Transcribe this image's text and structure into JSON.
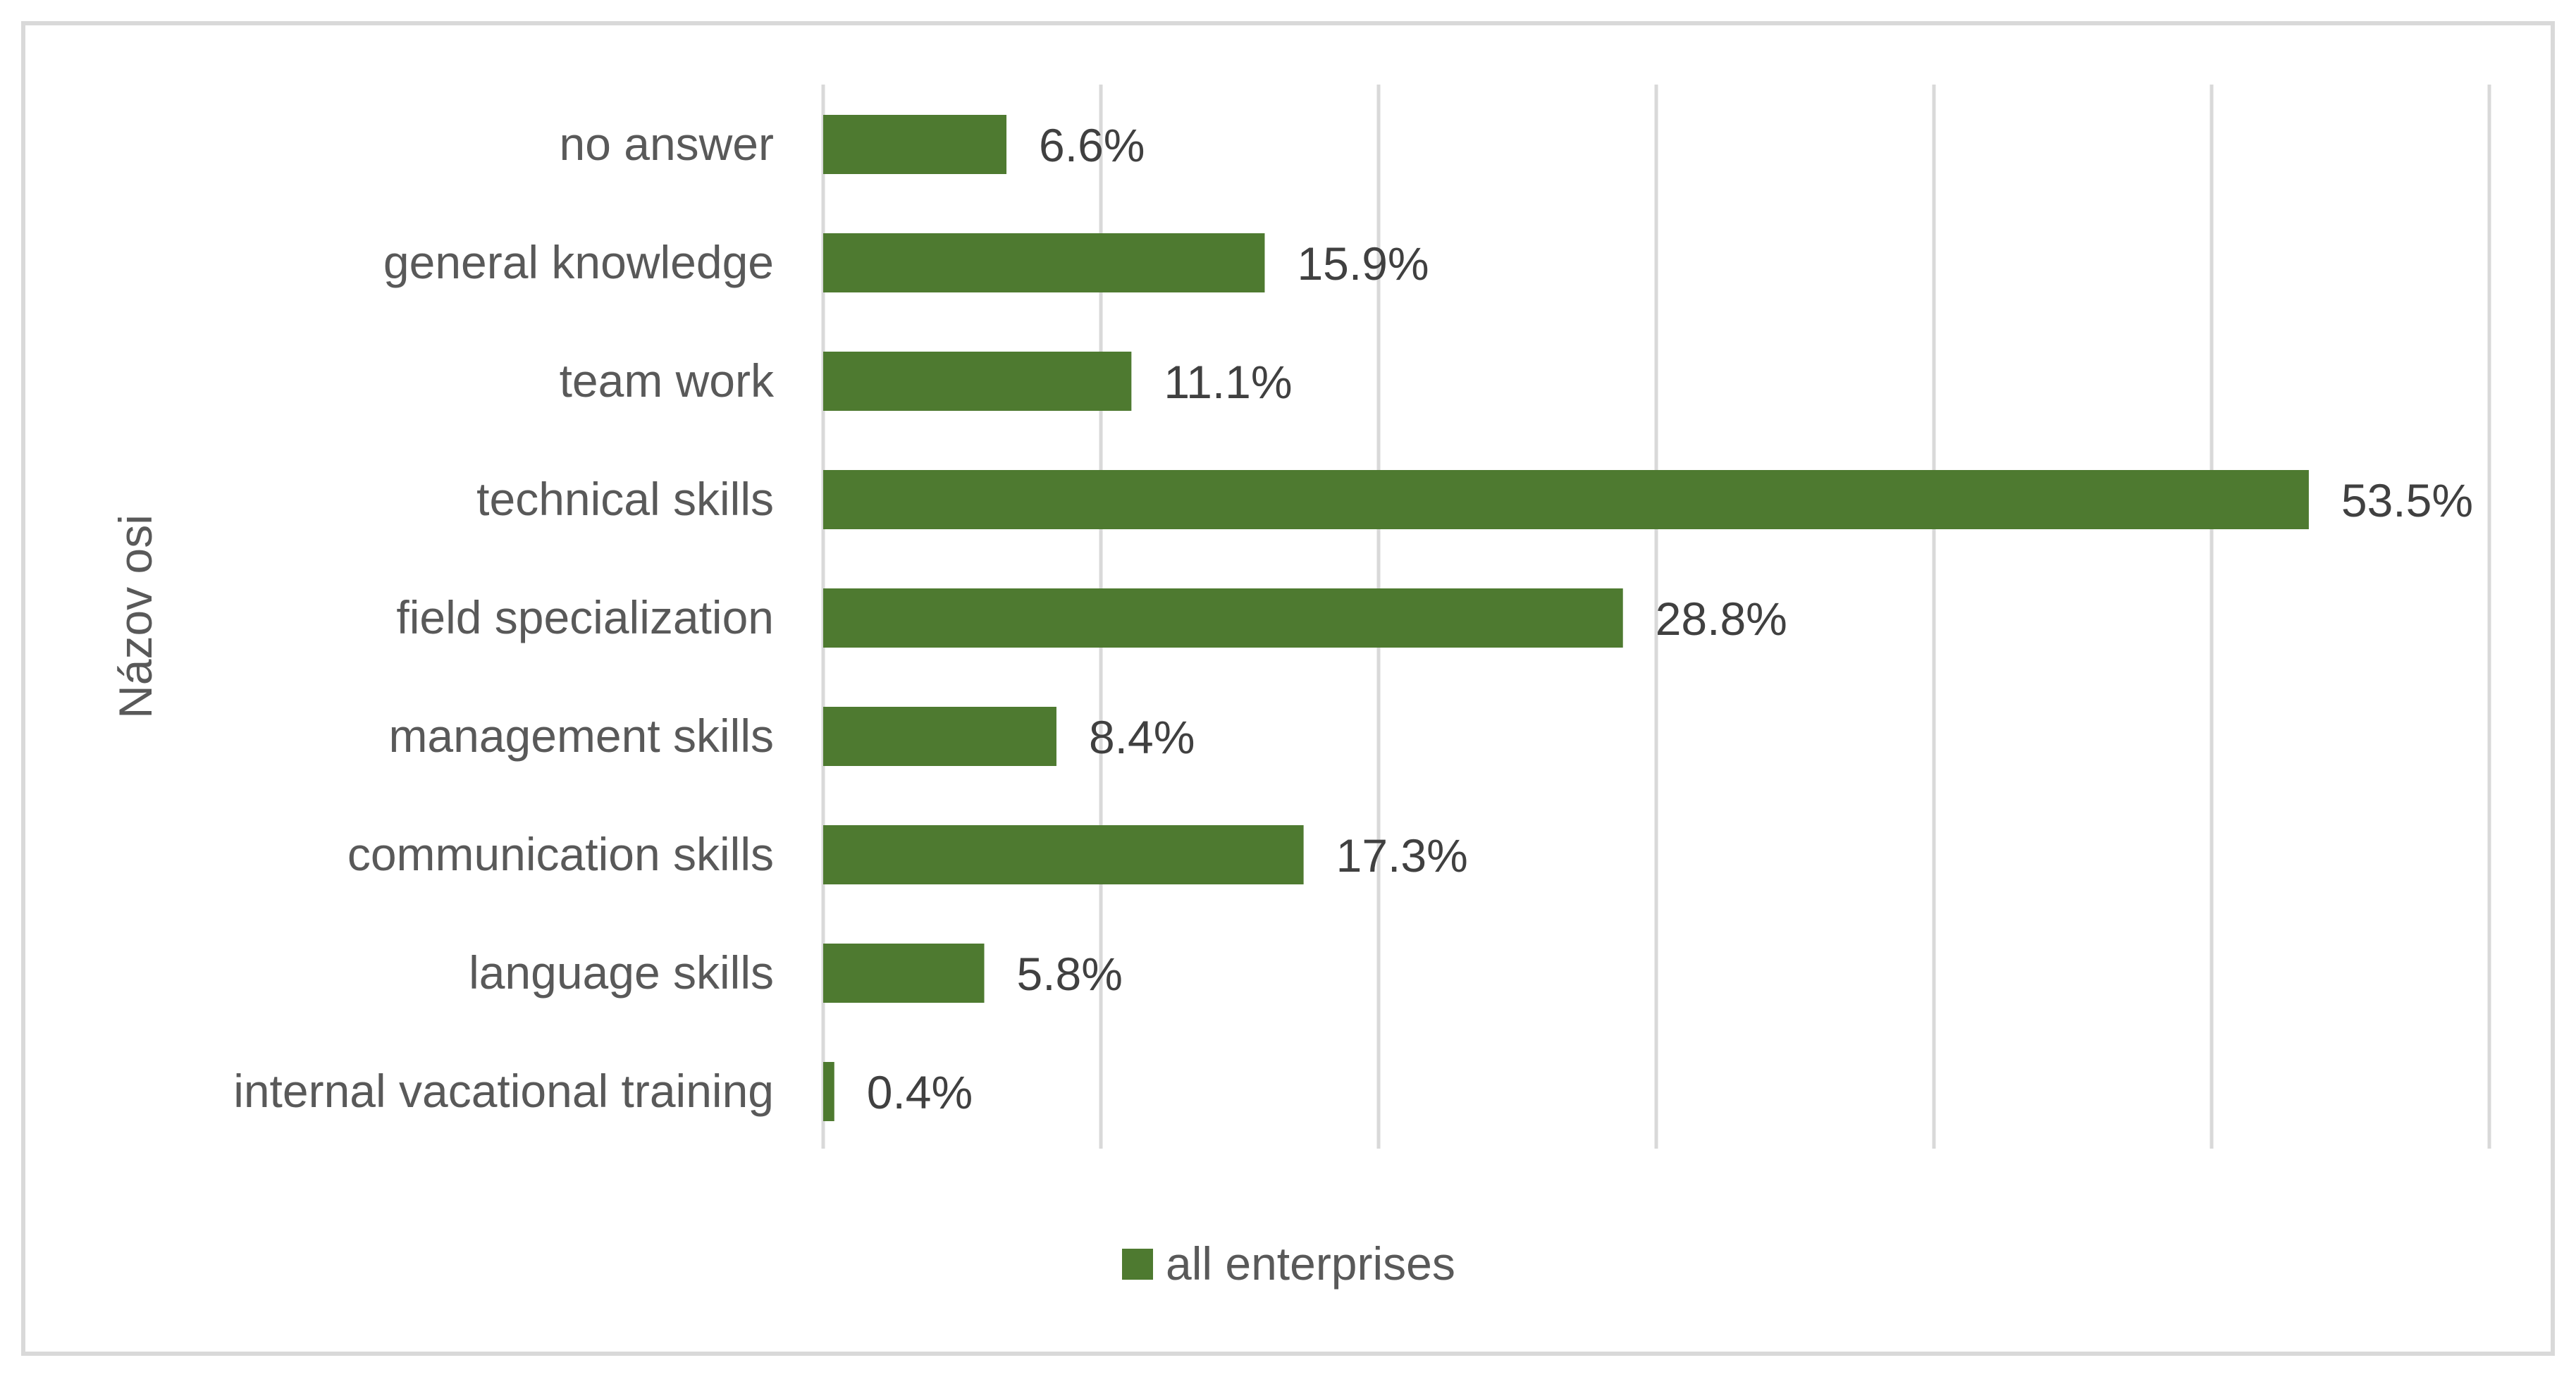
{
  "chart_data": {
    "type": "bar",
    "orientation": "horizontal",
    "title": "",
    "ylabel": "Názov osi",
    "xlabel": "",
    "categories": [
      "no answer",
      "general knowledge",
      "team work",
      "technical skills",
      "field specialization",
      "management skills",
      "communication skills",
      "language skills",
      "internal vacational training"
    ],
    "series": [
      {
        "name": "all enterprises",
        "color": "#4e7a30",
        "values": [
          6.6,
          15.9,
          11.1,
          53.5,
          28.8,
          8.4,
          17.3,
          5.8,
          0.4
        ],
        "labels": [
          "6.6%",
          "15.9%",
          "11.1%",
          "53.5%",
          "28.8%",
          "8.4%",
          "17.3%",
          "5.8%",
          "0.4%"
        ]
      }
    ],
    "xlim": [
      0,
      60
    ],
    "gridlines": true,
    "tick_labels_visible": false,
    "legend_position": "bottom"
  },
  "colors": {
    "bar": "#4e7a30",
    "gridline": "#d9d9d9",
    "frame": "#d9d9d9",
    "text": "#595959"
  }
}
